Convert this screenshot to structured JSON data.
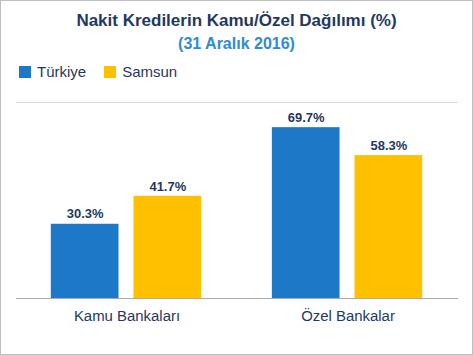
{
  "chart_data": {
    "type": "bar",
    "title": "Nakit Kredilerin Kamu/Özel Dağılımı (%)",
    "subtitle": "(31 Aralık 2016)",
    "categories": [
      "Kamu Bankaları",
      "Özel Bankalar"
    ],
    "series": [
      {
        "name": "Türkiye",
        "color": "#1E78C8",
        "values": [
          30.3,
          69.7
        ],
        "value_labels": [
          "30.3%",
          "69.7%"
        ]
      },
      {
        "name": "Samsun",
        "color": "#FFC000",
        "values": [
          41.7,
          58.3
        ],
        "value_labels": [
          "41.7%",
          "58.3%"
        ]
      }
    ],
    "ylim": [
      0,
      80
    ],
    "legend": "top-left",
    "data_labels": true,
    "tick_labels": "x",
    "grid": false
  }
}
